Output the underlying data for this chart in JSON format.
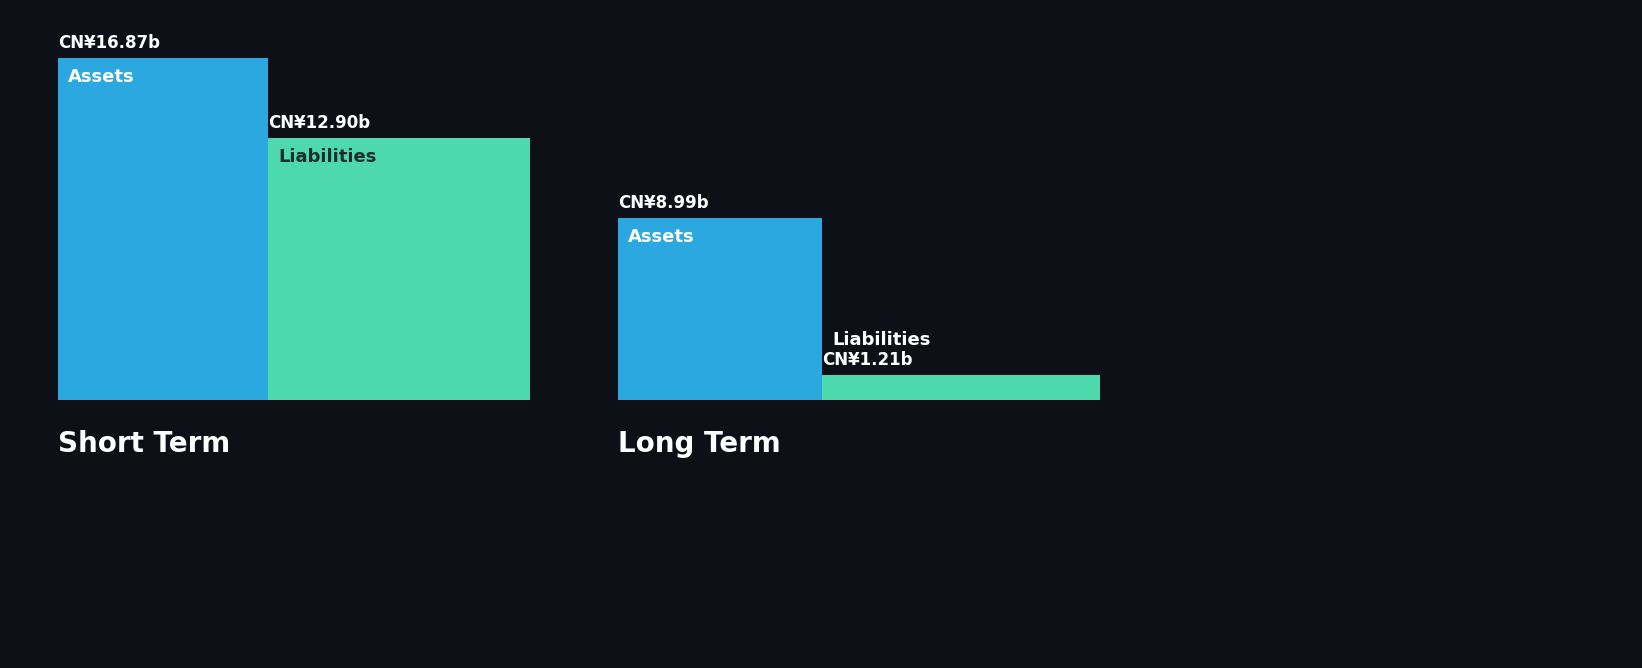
{
  "background_color": "#0d1117",
  "short_term": {
    "assets_value": 16.87,
    "liabilities_value": 12.9,
    "assets_label": "Assets",
    "liabilities_label": "Liabilities",
    "assets_color": "#2ba8e0",
    "liabilities_color": "#4dd9ac",
    "category_label": "Short Term"
  },
  "long_term": {
    "assets_value": 8.99,
    "liabilities_value": 1.21,
    "assets_label": "Assets",
    "liabilities_label": "Liabilities",
    "assets_color": "#2ba8e0",
    "liabilities_color": "#4dd9ac",
    "category_label": "Long Term"
  },
  "max_value": 16.87,
  "label_font_color": "#ffffff",
  "liabilities_label_color_st": "#1a2e2e",
  "value_font_color": "#ffffff",
  "category_font_color": "#ffffff",
  "category_fontsize": 20,
  "label_fontsize": 13,
  "value_fontsize": 12
}
